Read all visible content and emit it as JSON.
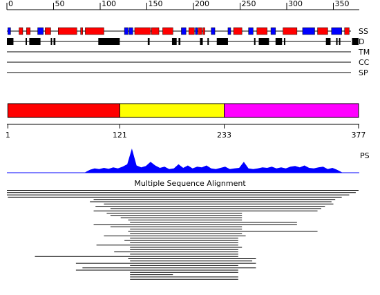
{
  "axis": {
    "ticks": [
      0,
      50,
      100,
      150,
      200,
      250,
      300,
      350
    ]
  },
  "tracks": {
    "ss": {
      "label": "SS",
      "colors": {
        "helix": "#ff0000",
        "strand": "#0000ff"
      },
      "segments": [
        {
          "start": 1,
          "end": 4,
          "type": "strand"
        },
        {
          "start": 13,
          "end": 17,
          "type": "helix"
        },
        {
          "start": 21,
          "end": 25,
          "type": "helix"
        },
        {
          "start": 33,
          "end": 39,
          "type": "strand"
        },
        {
          "start": 41,
          "end": 47,
          "type": "helix"
        },
        {
          "start": 55,
          "end": 75,
          "type": "helix"
        },
        {
          "start": 79,
          "end": 81,
          "type": "helix"
        },
        {
          "start": 84,
          "end": 104,
          "type": "helix"
        },
        {
          "start": 126,
          "end": 130,
          "type": "strand"
        },
        {
          "start": 131,
          "end": 135,
          "type": "strand"
        },
        {
          "start": 137,
          "end": 154,
          "type": "helix"
        },
        {
          "start": 155,
          "end": 163,
          "type": "helix"
        },
        {
          "start": 167,
          "end": 178,
          "type": "helix"
        },
        {
          "start": 187,
          "end": 192,
          "type": "strand"
        },
        {
          "start": 195,
          "end": 201,
          "type": "helix"
        },
        {
          "start": 202,
          "end": 204,
          "type": "strand"
        },
        {
          "start": 205,
          "end": 209,
          "type": "helix"
        },
        {
          "start": 210,
          "end": 212,
          "type": "helix"
        },
        {
          "start": 219,
          "end": 223,
          "type": "strand"
        },
        {
          "start": 237,
          "end": 240,
          "type": "strand"
        },
        {
          "start": 243,
          "end": 252,
          "type": "helix"
        },
        {
          "start": 259,
          "end": 264,
          "type": "strand"
        },
        {
          "start": 268,
          "end": 279,
          "type": "helix"
        },
        {
          "start": 283,
          "end": 288,
          "type": "strand"
        },
        {
          "start": 296,
          "end": 311,
          "type": "helix"
        },
        {
          "start": 317,
          "end": 330,
          "type": "strand"
        },
        {
          "start": 333,
          "end": 344,
          "type": "helix"
        },
        {
          "start": 348,
          "end": 359,
          "type": "strand"
        },
        {
          "start": 362,
          "end": 367,
          "type": "helix"
        }
      ]
    },
    "d": {
      "label": "D",
      "segments": [
        [
          0,
          7
        ],
        [
          20,
          21
        ],
        [
          24,
          36
        ],
        [
          47,
          48
        ],
        [
          50,
          52
        ],
        [
          98,
          121
        ],
        [
          151,
          153
        ],
        [
          177,
          182
        ],
        [
          184,
          186
        ],
        [
          207,
          210
        ],
        [
          215,
          216
        ],
        [
          225,
          237
        ],
        [
          265,
          266
        ],
        [
          270,
          281
        ],
        [
          288,
          295
        ],
        [
          297,
          298
        ],
        [
          342,
          347
        ],
        [
          353,
          354
        ],
        [
          356,
          357
        ],
        [
          370,
          377
        ]
      ]
    },
    "tm": {
      "label": "TM"
    },
    "cc": {
      "label": "CC"
    },
    "sp": {
      "label": "SP"
    }
  },
  "domains": {
    "boundaries": [
      1,
      121,
      233,
      377
    ],
    "colors": [
      "#ff0000",
      "#ffff00",
      "#ff00ff"
    ]
  },
  "ps": {
    "label": "PS",
    "color": "#0000ff",
    "x": [
      84,
      89,
      94,
      99,
      104,
      109,
      114,
      119,
      124,
      129,
      134,
      139,
      144,
      149,
      154,
      159,
      164,
      169,
      174,
      179,
      184,
      189,
      194,
      199,
      204,
      209,
      214,
      219,
      224,
      229,
      234,
      239,
      244,
      249,
      254,
      259,
      264,
      269,
      274,
      279,
      284,
      289,
      294,
      299,
      304,
      309,
      314,
      319,
      324,
      329,
      334,
      339,
      344,
      349,
      354,
      359
    ],
    "values": [
      2,
      12,
      18,
      15,
      20,
      16,
      22,
      18,
      25,
      35,
      100,
      30,
      22,
      28,
      45,
      30,
      20,
      25,
      15,
      18,
      35,
      20,
      30,
      18,
      25,
      22,
      30,
      18,
      15,
      20,
      25,
      15,
      18,
      20,
      45,
      18,
      15,
      18,
      22,
      20,
      25,
      18,
      22,
      18,
      25,
      28,
      22,
      30,
      20,
      18,
      22,
      25,
      15,
      20,
      12,
      2
    ]
  },
  "msa": {
    "title": "Multiple Sequence Alignment",
    "rows": [
      [
        0,
        377
      ],
      [
        0,
        374
      ],
      [
        0,
        367
      ],
      [
        1,
        359
      ],
      [
        93,
        352
      ],
      [
        89,
        348
      ],
      [
        104,
        350
      ],
      [
        95,
        341
      ],
      [
        111,
        337
      ],
      [
        93,
        333
      ],
      [
        107,
        252
      ],
      [
        111,
        252
      ],
      [
        122,
        252
      ],
      [
        130,
        252
      ],
      [
        132,
        311
      ],
      [
        93,
        311
      ],
      [
        111,
        252
      ],
      [
        132,
        252
      ],
      [
        130,
        333
      ],
      [
        132,
        252
      ],
      [
        104,
        256
      ],
      [
        132,
        248
      ],
      [
        126,
        248
      ],
      [
        132,
        248
      ],
      [
        96,
        248
      ],
      [
        132,
        252
      ],
      [
        132,
        248
      ],
      [
        115,
        248
      ],
      [
        132,
        248
      ],
      [
        30,
        248
      ],
      [
        130,
        267
      ],
      [
        132,
        263
      ],
      [
        74,
        267
      ],
      [
        132,
        248
      ],
      [
        81,
        267
      ],
      [
        74,
        248
      ],
      [
        132,
        248
      ],
      [
        132,
        178
      ],
      [
        132,
        248
      ],
      [
        132,
        248
      ]
    ]
  }
}
